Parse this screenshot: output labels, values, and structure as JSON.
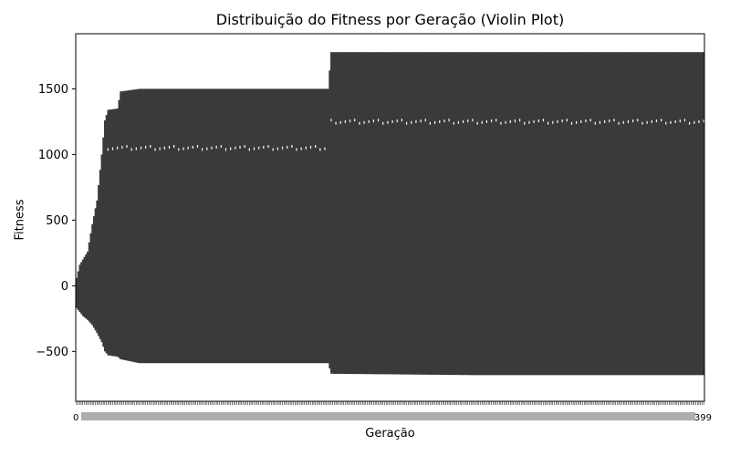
{
  "chart_data": {
    "type": "violin",
    "title": "Distribuição do Fitness por Geração (Violin Plot)",
    "xlabel": "Geração",
    "ylabel": "Fitness",
    "ylim": [
      -880,
      1920
    ],
    "yticks": [
      -500,
      0,
      500,
      1000,
      1500
    ],
    "ytick_labels": [
      "−500",
      "0",
      "500",
      "1000",
      "1500"
    ],
    "x_categories_range": [
      0,
      399
    ],
    "x_tick_labels_visible": [
      "0",
      "399"
    ],
    "violin_color": "#3a3a3a",
    "median_marker_color": "#ffffff",
    "grid": false,
    "legend": "none",
    "envelope": [
      {
        "generation": 0,
        "min": -170,
        "max": 60
      },
      {
        "generation": 2,
        "min": -200,
        "max": 160
      },
      {
        "generation": 4,
        "min": -230,
        "max": 200
      },
      {
        "generation": 7,
        "min": -260,
        "max": 260
      },
      {
        "generation": 10,
        "min": -300,
        "max": 470
      },
      {
        "generation": 13,
        "min": -360,
        "max": 650
      },
      {
        "generation": 16,
        "min": -430,
        "max": 1000
      },
      {
        "generation": 18,
        "min": -500,
        "max": 1260
      },
      {
        "generation": 20,
        "min": -530,
        "max": 1340
      },
      {
        "generation": 26,
        "min": -540,
        "max": 1350
      },
      {
        "generation": 28,
        "min": -560,
        "max": 1480
      },
      {
        "generation": 40,
        "min": -590,
        "max": 1500
      },
      {
        "generation": 100,
        "min": -590,
        "max": 1500
      },
      {
        "generation": 160,
        "min": -590,
        "max": 1500
      },
      {
        "generation": 162,
        "min": -670,
        "max": 1780
      },
      {
        "generation": 250,
        "min": -680,
        "max": 1780
      },
      {
        "generation": 399,
        "min": -680,
        "max": 1780
      }
    ],
    "median_bands": [
      {
        "from": 20,
        "to": 160,
        "value": 1050
      },
      {
        "from": 162,
        "to": 399,
        "value": 1250
      }
    ]
  }
}
